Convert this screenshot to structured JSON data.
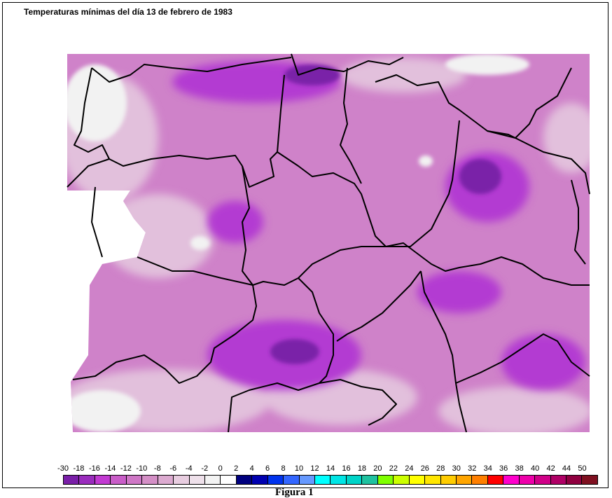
{
  "title": "Temperaturas mínimas del día 13 de febrero de 1983",
  "caption": "Figura 1",
  "legend": {
    "labels": [
      "-30",
      "-18",
      "-16",
      "-14",
      "-12",
      "-10",
      "-8",
      "-6",
      "-4",
      "-2",
      "0",
      "2",
      "4",
      "6",
      "8",
      "10",
      "12",
      "14",
      "16",
      "18",
      "20",
      "22",
      "24",
      "26",
      "28",
      "30",
      "32",
      "34",
      "36",
      "38",
      "40",
      "42",
      "44",
      "50"
    ],
    "colors": [
      "#7a1fa8",
      "#9a2cbd",
      "#c23ad2",
      "#c95dc8",
      "#cf77c6",
      "#d48fc6",
      "#dcaad0",
      "#e8cde0",
      "#eee0ea",
      "#f3f3f3",
      "#ffffff",
      "#00007f",
      "#0000b0",
      "#0033ee",
      "#3366ff",
      "#6699ff",
      "#00ffff",
      "#00e5e5",
      "#00d4c8",
      "#1fc2a0",
      "#7fff00",
      "#ccff00",
      "#ffff00",
      "#ffe600",
      "#ffcc00",
      "#ffa500",
      "#ff7f00",
      "#ff0000",
      "#ff00cc",
      "#ee00aa",
      "#d00088",
      "#b00066",
      "#900040",
      "#7f1020"
    ]
  },
  "map": {
    "base_color": "#cf82c9",
    "cold_color": "#b33bd2",
    "very_cold_color": "#7a22a8",
    "mild_color": "#e2c0dc",
    "snow_color": "#f2f2f2"
  }
}
